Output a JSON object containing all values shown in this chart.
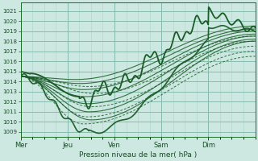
{
  "xlabel": "Pression niveau de la mer( hPa )",
  "ylim": [
    1008.5,
    1021.8
  ],
  "yticks": [
    1009,
    1010,
    1011,
    1012,
    1013,
    1014,
    1015,
    1016,
    1017,
    1018,
    1019,
    1020,
    1021
  ],
  "day_labels": [
    "Mer",
    "Jeu",
    "Ven",
    "Sam",
    "Dim"
  ],
  "day_positions": [
    0,
    24,
    48,
    72,
    96
  ],
  "total_hours": 120,
  "bg_color": "#cce8e0",
  "grid_major_color": "#88bbb0",
  "grid_minor_color": "#aad4cc",
  "line_color": "#1a5c28",
  "figsize": [
    3.2,
    2.0
  ],
  "dpi": 100
}
